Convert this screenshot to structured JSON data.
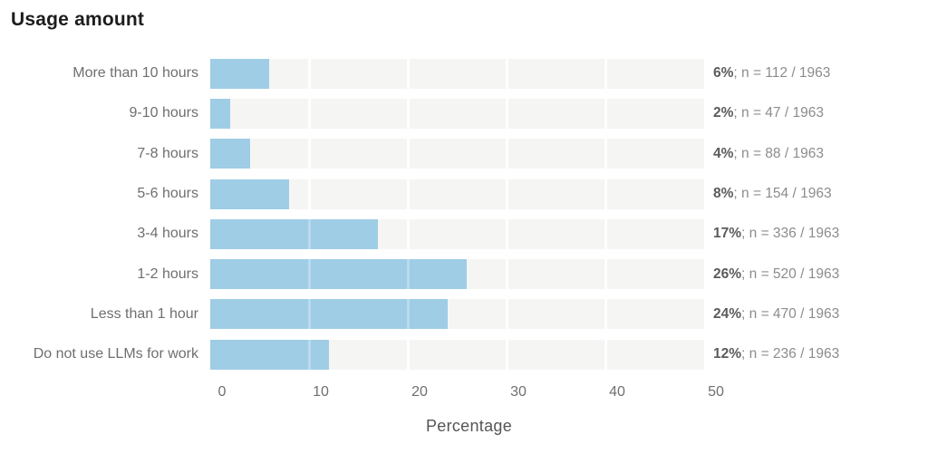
{
  "page": {
    "background": "#ffffff"
  },
  "chart_data": {
    "type": "bar",
    "orientation": "horizontal",
    "title": "Usage amount",
    "xlabel": "Percentage",
    "xlim": [
      0,
      50
    ],
    "xticks": [
      0,
      10,
      20,
      30,
      40,
      50
    ],
    "grid": true,
    "legend": false,
    "bar_color": "#9fcde6",
    "track_color": "#f5f5f4",
    "total_n": 1963,
    "categories": [
      "More than 10 hours",
      "9-10 hours",
      "7-8 hours",
      "5-6 hours",
      "3-4 hours",
      "1-2 hours",
      "Less than 1 hour",
      "Do not use LLMs for work"
    ],
    "values": [
      6,
      2,
      4,
      8,
      17,
      26,
      24,
      12
    ],
    "counts": [
      112,
      47,
      88,
      154,
      336,
      520,
      470,
      236
    ],
    "annotations": [
      {
        "pct": "6%",
        "detail": "; n = 112 / 1963"
      },
      {
        "pct": "2%",
        "detail": "; n = 47 / 1963"
      },
      {
        "pct": "4%",
        "detail": "; n = 88 / 1963"
      },
      {
        "pct": "8%",
        "detail": "; n = 154 / 1963"
      },
      {
        "pct": "17%",
        "detail": "; n = 336 / 1963"
      },
      {
        "pct": "26%",
        "detail": "; n = 520 / 1963"
      },
      {
        "pct": "24%",
        "detail": "; n = 470 / 1963"
      },
      {
        "pct": "12%",
        "detail": "; n = 236 / 1963"
      }
    ]
  }
}
